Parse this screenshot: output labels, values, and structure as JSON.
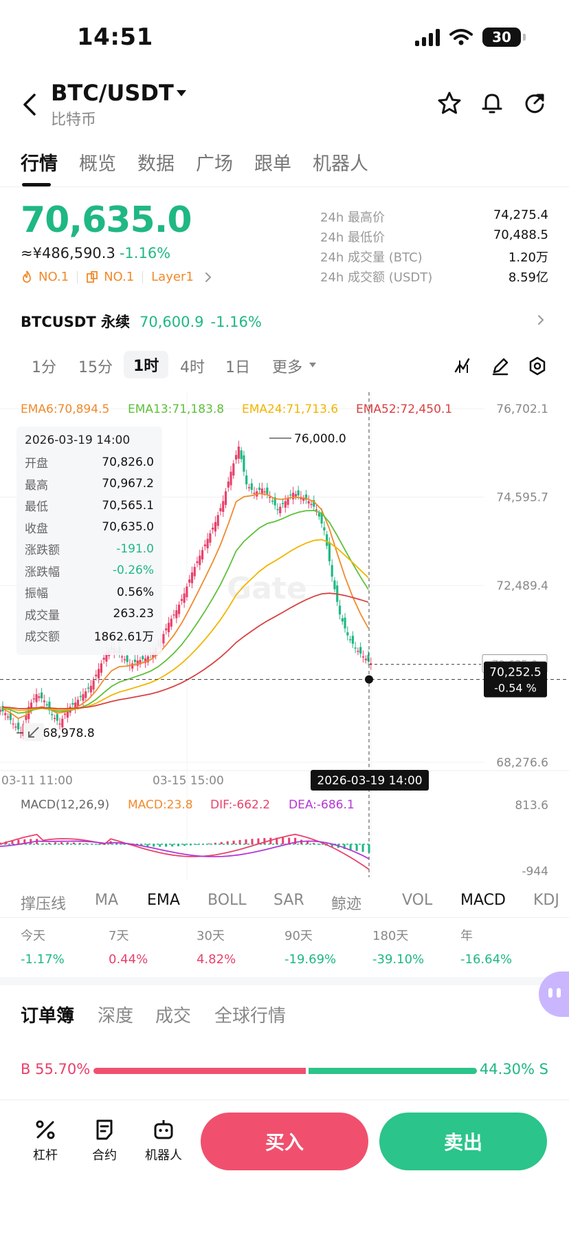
{
  "status": {
    "time": "14:51",
    "battery": "30"
  },
  "header": {
    "pair": "BTC/USDT",
    "subtitle": "比特币"
  },
  "tabs": [
    "行情",
    "概览",
    "数据",
    "广场",
    "跟单",
    "机器人"
  ],
  "price": {
    "last": "70,635.0",
    "cny": "≈¥486,590.3",
    "change": "-1.16%",
    "rank1": "NO.1",
    "rank2": "NO.1",
    "tag": "Layer1"
  },
  "stats": [
    {
      "label": "24h 最高价",
      "value": "74,275.4"
    },
    {
      "label": "24h 最低价",
      "value": "70,488.5"
    },
    {
      "label": "24h 成交量 (BTC)",
      "value": "1.20万"
    },
    {
      "label": "24h 成交额 (USDT)",
      "value": "8.59亿"
    }
  ],
  "perp": {
    "name": "BTCUSDT 永续",
    "price": "70,600.9",
    "change": "-1.16%"
  },
  "intervals": [
    "1分",
    "15分",
    "1时",
    "4时",
    "1日",
    "更多"
  ],
  "ema": {
    "ema6": "EMA6:70,894.5",
    "ema13": "EMA13:71,183.8",
    "ema24": "EMA24:71,713.6",
    "ema52": "EMA52:72,450.1"
  },
  "colors": {
    "up": "#e8416b",
    "down": "#1fb882",
    "ema6": "#f08a2c",
    "ema13": "#5ec03a",
    "ema24": "#f2b400",
    "ema52": "#d94040",
    "dif": "#e8416b",
    "dea": "#b534d6"
  },
  "chart_data": {
    "type": "candlestick",
    "y_axis_labels": [
      "76,702.1",
      "74,595.7",
      "72,489.4",
      "68,276.6"
    ],
    "ylim": [
      68276.6,
      76702.1
    ],
    "x_axis_labels": [
      "03-11 11:00",
      "03-15 15:00"
    ],
    "high_marker": "76,000.0",
    "low_marker": "68,978.8",
    "crosshair_time": "2026-03-19 14:00",
    "crosshair_price": "70,252.5",
    "crosshair_pct": "-0.54 %",
    "hidden_label": "70,635.0",
    "close_series": [
      69450,
      69200,
      68990,
      69600,
      69900,
      69750,
      69400,
      69200,
      69550,
      69700,
      69900,
      70100,
      70500,
      70900,
      71000,
      70800,
      70600,
      70700,
      70750,
      70900,
      71200,
      71600,
      71900,
      72300,
      72800,
      73200,
      73600,
      74000,
      74500,
      75200,
      75800,
      74900,
      74700,
      74800,
      74600,
      74300,
      74500,
      74700,
      74600,
      74500,
      74300,
      73800,
      72700,
      71800,
      71300,
      71000,
      70800,
      70635
    ]
  },
  "ohlc": {
    "date": "2026-03-19 14:00",
    "rows": [
      {
        "k": "开盘",
        "v": "70,826.0",
        "c": ""
      },
      {
        "k": "最高",
        "v": "70,967.2",
        "c": ""
      },
      {
        "k": "最低",
        "v": "70,565.1",
        "c": ""
      },
      {
        "k": "收盘",
        "v": "70,635.0",
        "c": ""
      },
      {
        "k": "涨跌额",
        "v": "-191.0",
        "c": "g"
      },
      {
        "k": "涨跌幅",
        "v": "-0.26%",
        "c": "g"
      },
      {
        "k": "振幅",
        "v": "0.56%",
        "c": ""
      },
      {
        "k": "成交量",
        "v": "263.23",
        "c": ""
      },
      {
        "k": "成交额",
        "v": "1862.61万",
        "c": ""
      }
    ]
  },
  "macd": {
    "title": "MACD(12,26,9)",
    "macd": "MACD:23.8",
    "dif": "DIF:-662.2",
    "dea": "DEA:-686.1",
    "top": "813.6",
    "bottom": "-944"
  },
  "indicators": [
    "撑压线",
    "MA",
    "EMA",
    "BOLL",
    "SAR",
    "鲸迹",
    "VOL",
    "MACD",
    "KDJ"
  ],
  "performance": [
    {
      "k": "今天",
      "v": "-1.17%",
      "c": "g"
    },
    {
      "k": "7天",
      "v": "0.44%",
      "c": "r"
    },
    {
      "k": "30天",
      "v": "4.82%",
      "c": "r"
    },
    {
      "k": "90天",
      "v": "-19.69%",
      "c": "g"
    },
    {
      "k": "180天",
      "v": "-39.10%",
      "c": "g"
    },
    {
      "k": "年",
      "v": "-16.64%",
      "c": "g"
    }
  ],
  "orderbook_tabs": [
    "订单簿",
    "深度",
    "成交",
    "全球行情"
  ],
  "ratio": {
    "buy": "B 55.70%",
    "sell": "44.30% S",
    "buy_fraction": 0.557
  },
  "bottom": {
    "leverage": "杠杆",
    "contract": "合约",
    "bot": "机器人",
    "buy": "买入",
    "sell": "卖出"
  }
}
